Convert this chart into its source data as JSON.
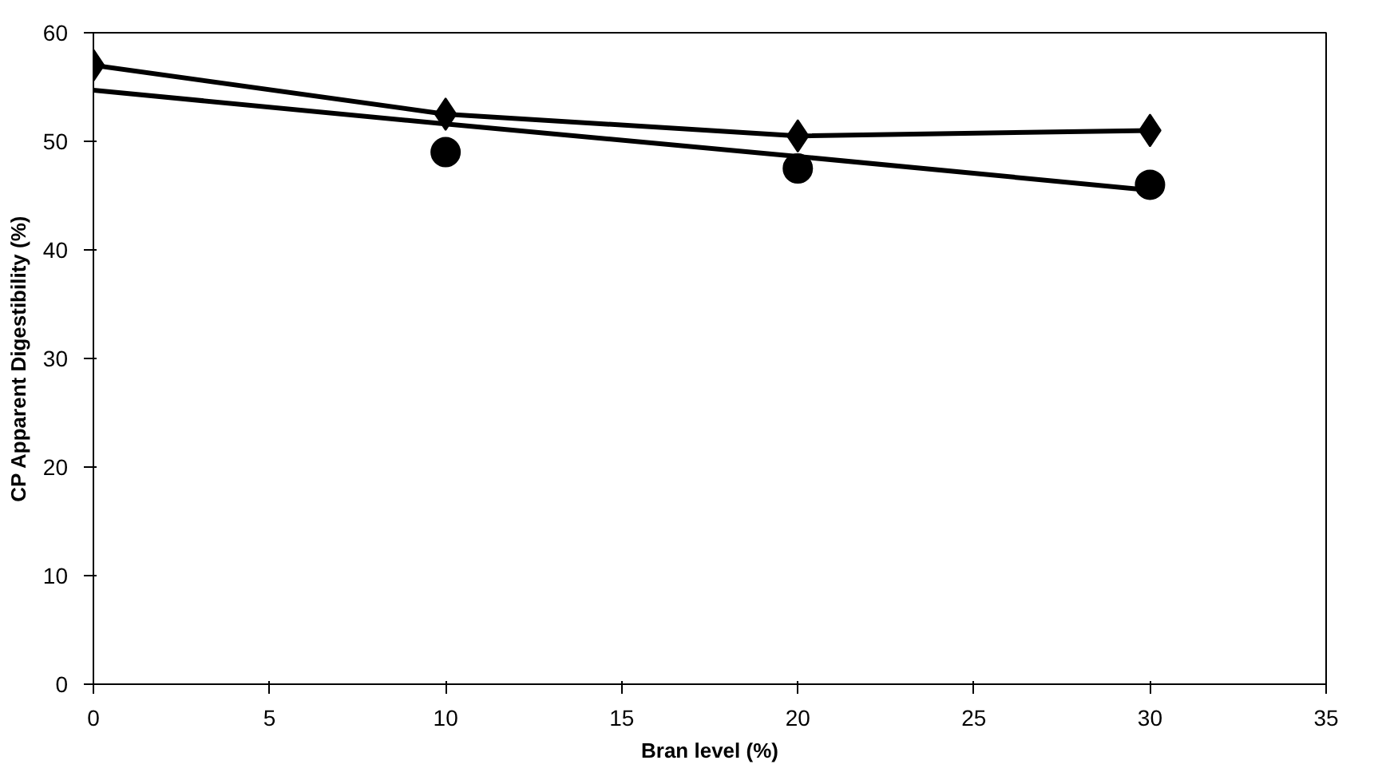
{
  "chart_data": {
    "type": "line",
    "xlabel": "Bran level (%)",
    "ylabel": "CP Apparent Digestibility (%)",
    "x": [
      0,
      10,
      20,
      30
    ],
    "series": [
      {
        "color": "#000000",
        "values": [
          57,
          52.5,
          50.5,
          51
        ],
        "marker": "diamond"
      },
      {
        "color": "#000000",
        "values": [
          null,
          49,
          47.5,
          46
        ],
        "marker": "circle",
        "type": "scatter"
      },
      {
        "color": "#000000",
        "values": [
          54.7,
          51.6,
          48.6,
          45.5
        ],
        "marker": "none"
      }
    ],
    "xlim": [
      0,
      35
    ],
    "ylim": [
      0,
      60
    ],
    "xticks": [
      0,
      5,
      10,
      15,
      20,
      25,
      30,
      35
    ],
    "yticks": [
      0,
      10,
      20,
      30,
      40,
      50,
      60
    ],
    "grid": false
  }
}
